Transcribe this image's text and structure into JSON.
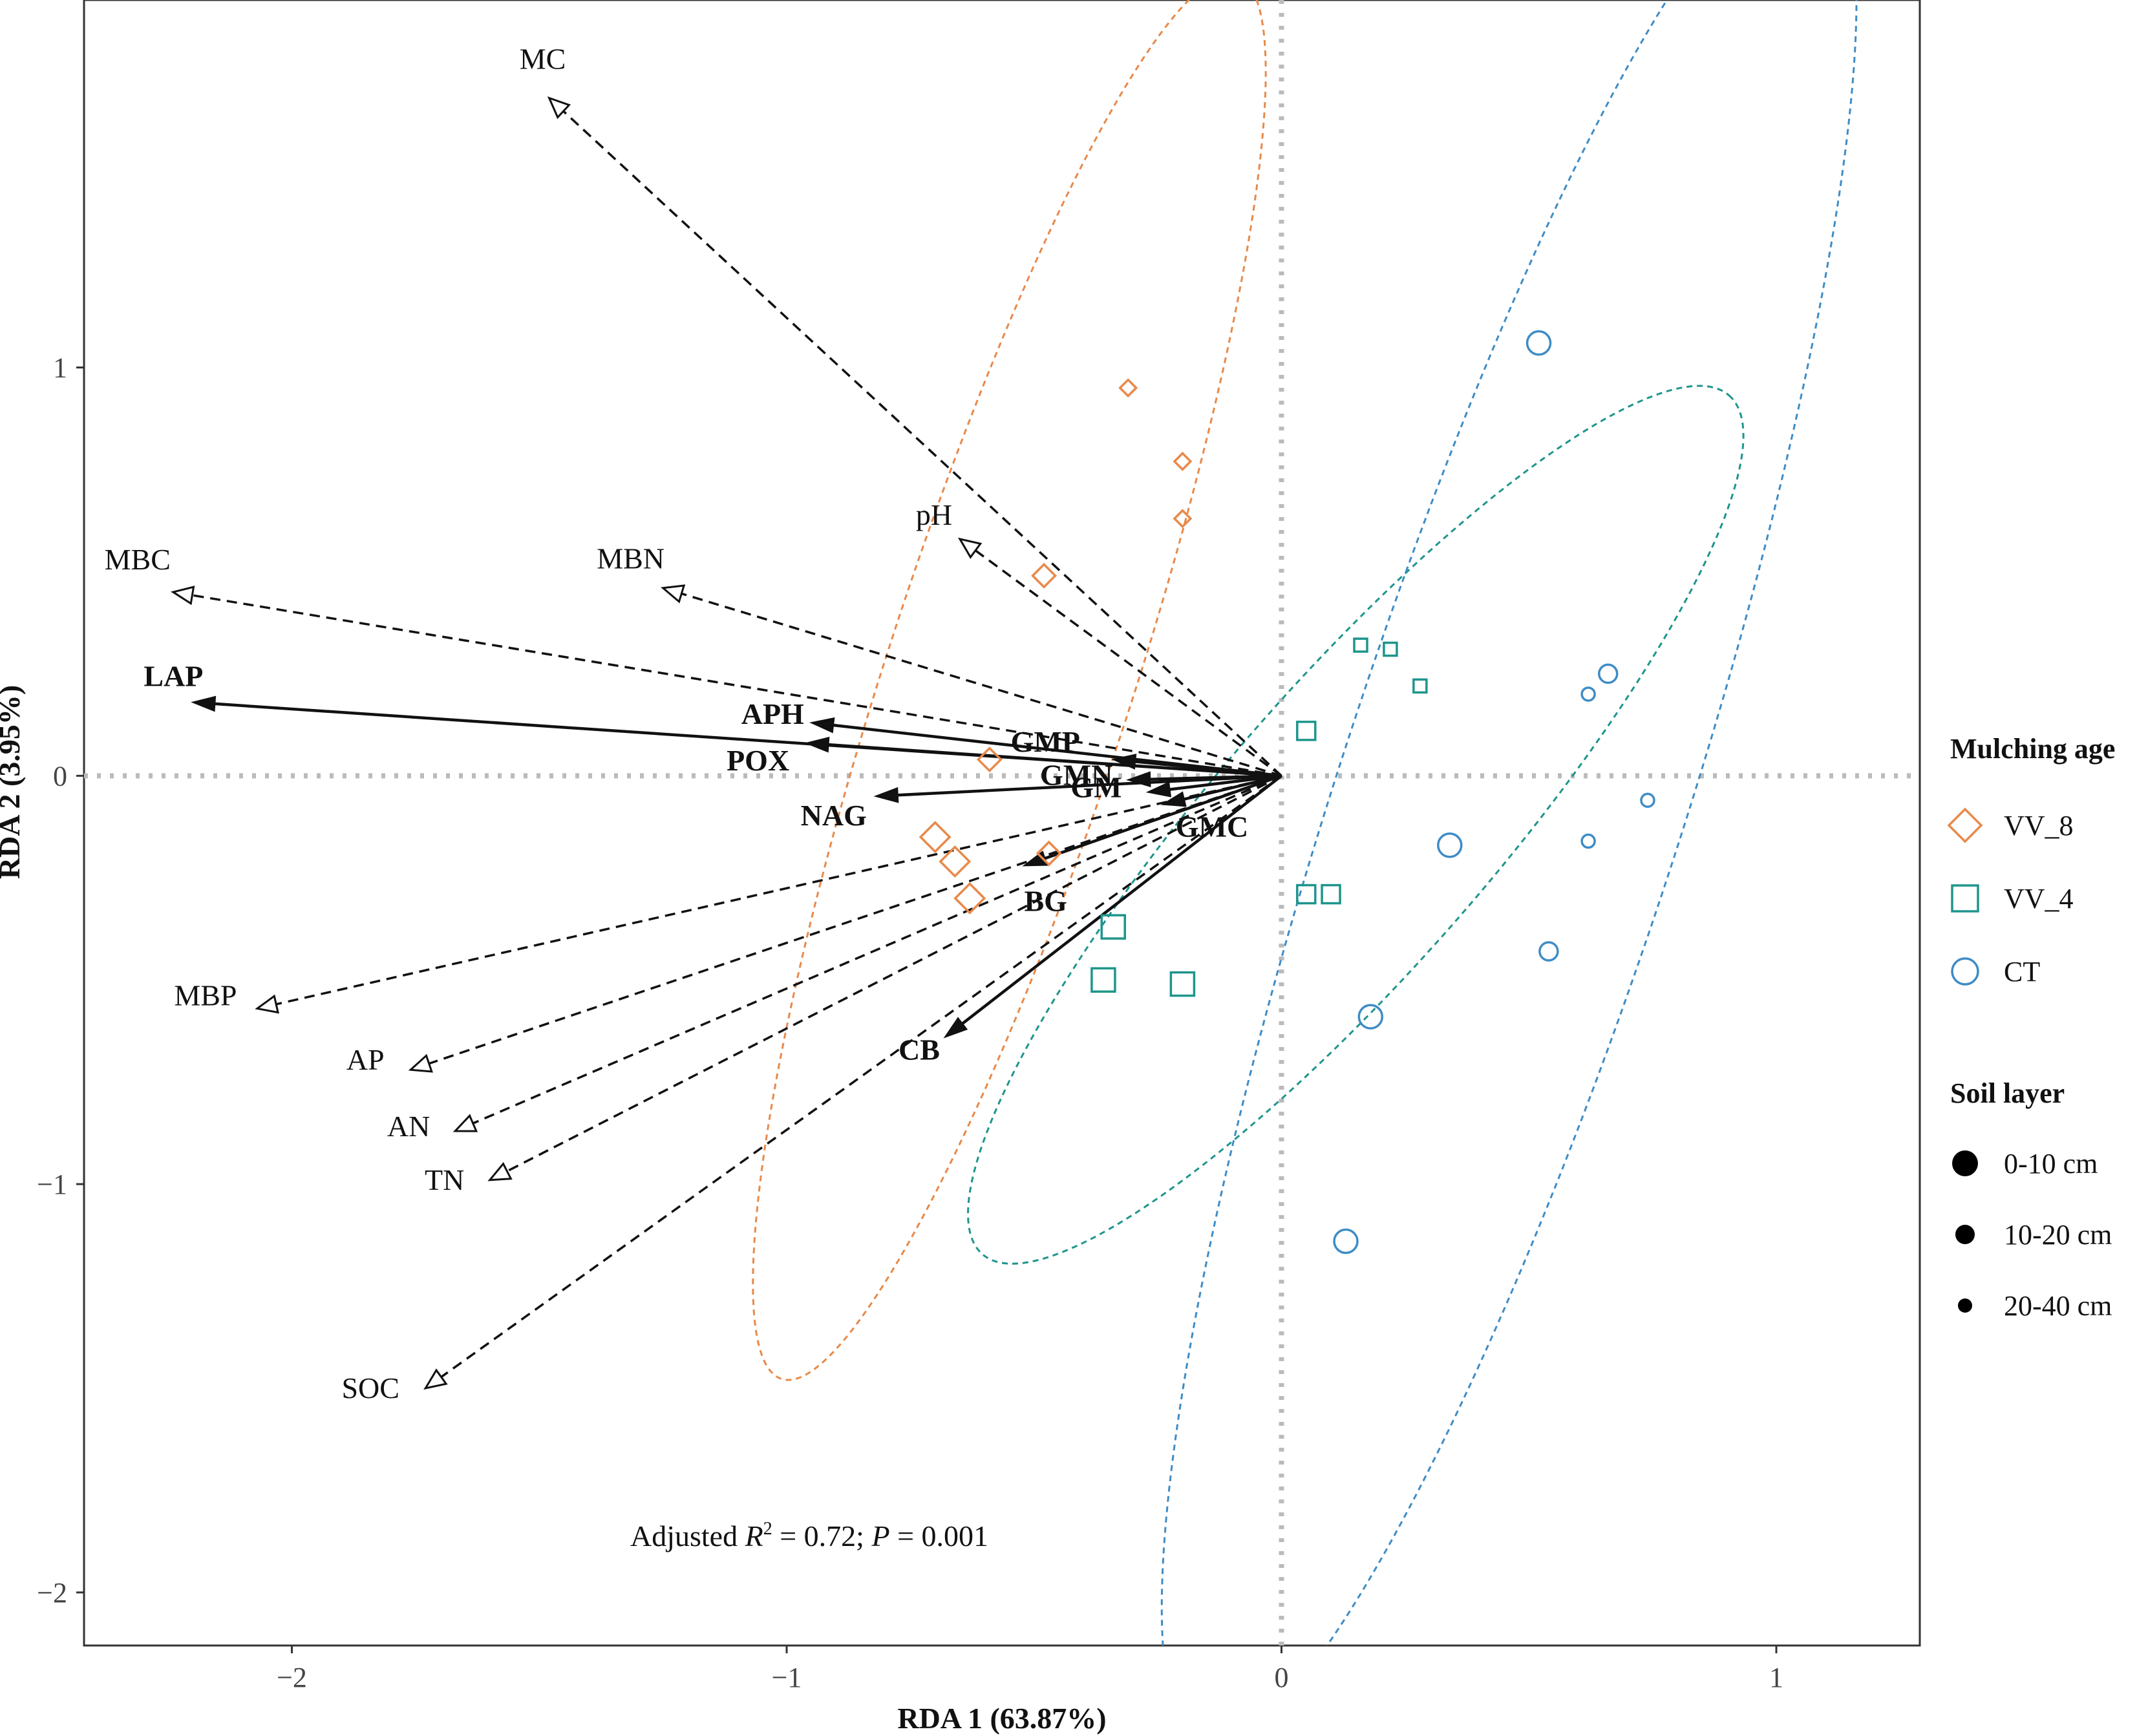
{
  "chart_data": {
    "type": "scatter",
    "subtype": "RDA biplot",
    "xlabel": "RDA 1 (63.87%)",
    "ylabel": "RDA 2 (3.95%)",
    "xlim": [
      -2.42,
      1.29
    ],
    "ylim": [
      -2.13,
      1.9
    ],
    "xticks": [
      {
        "v": -2,
        "t": "−2"
      },
      {
        "v": -1,
        "t": "−1"
      },
      {
        "v": 0,
        "t": "0"
      },
      {
        "v": 1,
        "t": "1"
      }
    ],
    "yticks": [
      {
        "v": -2,
        "t": "−2"
      },
      {
        "v": -1,
        "t": "−1"
      },
      {
        "v": 0,
        "t": "0"
      },
      {
        "v": 1,
        "t": "1"
      }
    ],
    "zero_lines": true,
    "annotation": {
      "prefix": "Adjusted ",
      "r_symbol": "R",
      "r_sup": "2",
      "mid": " = 0.72; ",
      "p_symbol": "P",
      "suffix": " = 0.001"
    },
    "env_vectors": [
      {
        "name": "MC",
        "x": -1.48,
        "y": 1.66
      },
      {
        "name": "pH",
        "x": -0.65,
        "y": 0.58
      },
      {
        "name": "MBN",
        "x": -1.25,
        "y": 0.46
      },
      {
        "name": "MBC",
        "x": -2.24,
        "y": 0.45
      },
      {
        "name": "MBP",
        "x": -2.07,
        "y": -0.57
      },
      {
        "name": "AP",
        "x": -1.76,
        "y": -0.72
      },
      {
        "name": "AN",
        "x": -1.67,
        "y": -0.87
      },
      {
        "name": "TN",
        "x": -1.6,
        "y": -0.99
      },
      {
        "name": "SOC",
        "x": -1.73,
        "y": -1.5
      }
    ],
    "enzyme_vectors": [
      {
        "name": "LAP",
        "x": -2.2,
        "y": 0.18
      },
      {
        "name": "APH",
        "x": -0.95,
        "y": 0.13
      },
      {
        "name": "POX",
        "x": -0.96,
        "y": 0.08
      },
      {
        "name": "NAG",
        "x": -0.82,
        "y": -0.05
      },
      {
        "name": "GMP",
        "x": -0.34,
        "y": 0.04
      },
      {
        "name": "GMN",
        "x": -0.31,
        "y": -0.01
      },
      {
        "name": "GM",
        "x": -0.27,
        "y": -0.04
      },
      {
        "name": "GMC",
        "x": -0.24,
        "y": -0.07
      },
      {
        "name": "BG",
        "x": -0.52,
        "y": -0.22
      },
      {
        "name": "CB",
        "x": -0.68,
        "y": -0.64
      }
    ],
    "series": [
      {
        "name": "VV_8",
        "color": "#E8894A",
        "shape": "diamond",
        "points": [
          {
            "x": -0.31,
            "y": 0.95,
            "layer": "20-40 cm"
          },
          {
            "x": -0.2,
            "y": 0.77,
            "layer": "20-40 cm"
          },
          {
            "x": -0.2,
            "y": 0.63,
            "layer": "20-40 cm"
          },
          {
            "x": -0.48,
            "y": 0.49,
            "layer": "10-20 cm"
          },
          {
            "x": -0.59,
            "y": 0.04,
            "layer": "10-20 cm"
          },
          {
            "x": -0.47,
            "y": -0.19,
            "layer": "10-20 cm"
          },
          {
            "x": -0.7,
            "y": -0.15,
            "layer": "0-10 cm"
          },
          {
            "x": -0.66,
            "y": -0.21,
            "layer": "0-10 cm"
          },
          {
            "x": -0.63,
            "y": -0.3,
            "layer": "0-10 cm"
          }
        ]
      },
      {
        "name": "VV_4",
        "color": "#1E958C",
        "shape": "square",
        "points": [
          {
            "x": 0.16,
            "y": 0.32,
            "layer": "20-40 cm"
          },
          {
            "x": 0.22,
            "y": 0.31,
            "layer": "20-40 cm"
          },
          {
            "x": 0.28,
            "y": 0.22,
            "layer": "20-40 cm"
          },
          {
            "x": 0.05,
            "y": 0.11,
            "layer": "10-20 cm"
          },
          {
            "x": 0.05,
            "y": -0.29,
            "layer": "10-20 cm"
          },
          {
            "x": 0.1,
            "y": -0.29,
            "layer": "10-20 cm"
          },
          {
            "x": -0.34,
            "y": -0.37,
            "layer": "0-10 cm"
          },
          {
            "x": -0.36,
            "y": -0.5,
            "layer": "0-10 cm"
          },
          {
            "x": -0.2,
            "y": -0.51,
            "layer": "0-10 cm"
          }
        ]
      },
      {
        "name": "CT",
        "color": "#3E8CC6",
        "shape": "circle",
        "points": [
          {
            "x": 0.52,
            "y": 1.06,
            "layer": "0-10 cm"
          },
          {
            "x": 0.66,
            "y": 0.25,
            "layer": "10-20 cm"
          },
          {
            "x": 0.62,
            "y": 0.2,
            "layer": "20-40 cm"
          },
          {
            "x": 0.74,
            "y": -0.06,
            "layer": "20-40 cm"
          },
          {
            "x": 0.62,
            "y": -0.16,
            "layer": "20-40 cm"
          },
          {
            "x": 0.34,
            "y": -0.17,
            "layer": "0-10 cm"
          },
          {
            "x": 0.54,
            "y": -0.43,
            "layer": "10-20 cm"
          },
          {
            "x": 0.18,
            "y": -0.59,
            "layer": "0-10 cm"
          },
          {
            "x": 0.13,
            "y": -1.14,
            "layer": "0-10 cm"
          }
        ]
      }
    ],
    "ellipses": [
      {
        "group": "VV_8",
        "color": "#E8894A",
        "cx": -0.55,
        "cy": 0.24,
        "rx": 1.49,
        "ry": 0.25,
        "angle_deg": 72
      },
      {
        "group": "VV_4",
        "color": "#1E958C",
        "cx": 0.15,
        "cy": -0.12,
        "rx": 1.15,
        "ry": 0.28,
        "angle_deg": 49
      },
      {
        "group": "CT",
        "color": "#3E8CC6",
        "cx": 0.46,
        "cy": -0.07,
        "rx": 2.0,
        "ry": 0.35,
        "angle_deg": 72
      }
    ],
    "legend": {
      "position": "right",
      "groups_title": "Mulching age",
      "groups": [
        {
          "label": "VV_8",
          "shape": "diamond",
          "color": "#E8894A"
        },
        {
          "label": "VV_4",
          "shape": "square",
          "color": "#1E958C"
        },
        {
          "label": "CT",
          "shape": "circle",
          "color": "#3E8CC6"
        }
      ],
      "layers_title": "Soil layer",
      "layers": [
        {
          "label": "0-10 cm",
          "key": "0-10 cm"
        },
        {
          "label": "10-20 cm",
          "key": "10-20 cm"
        },
        {
          "label": "20-40 cm",
          "key": "20-40 cm"
        }
      ]
    }
  }
}
